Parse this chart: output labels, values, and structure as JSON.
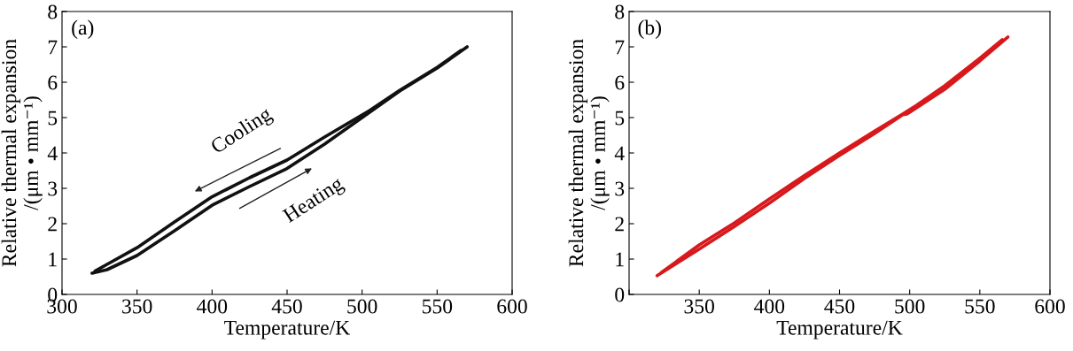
{
  "chart_data": [
    {
      "type": "line",
      "title": "(a)",
      "xlabel": "Temperature/K",
      "ylabel": "Relative thermal expansion\n/(μm • mm⁻¹)",
      "xlim": [
        300,
        600
      ],
      "xticks": [
        300,
        350,
        400,
        450,
        500,
        550,
        600
      ],
      "ylim": [
        0,
        8
      ],
      "yticks": [
        0,
        1,
        2,
        3,
        4,
        5,
        6,
        7,
        8
      ],
      "annotations": [
        "Cooling",
        "Heating"
      ],
      "grid": false,
      "legend": false,
      "series": [
        {
          "color": "#111111",
          "x": [
            320,
            330,
            350,
            375,
            400,
            425,
            450,
            475,
            500,
            525,
            550,
            570
          ],
          "values": [
            0.6,
            0.7,
            1.1,
            1.8,
            2.52,
            3.05,
            3.56,
            4.25,
            5.0,
            5.75,
            6.4,
            7.0
          ]
        },
        {
          "color": "#111111",
          "x": [
            566,
            550,
            525,
            505,
            475,
            450,
            425,
            400,
            375,
            350,
            330,
            322
          ],
          "values": [
            6.9,
            6.42,
            5.77,
            5.2,
            4.45,
            3.8,
            3.3,
            2.76,
            2.05,
            1.32,
            0.85,
            0.66
          ]
        }
      ]
    },
    {
      "type": "line",
      "title": "(b)",
      "xlabel": "Temperature/K",
      "ylabel": "Relative thermal expansion\n/(μm • mm⁻¹)",
      "xlim": [
        300,
        600
      ],
      "xticks": [
        {
          "value": 300,
          "label": null
        },
        350,
        400,
        450,
        500,
        550,
        600
      ],
      "ylim": [
        0,
        8
      ],
      "yticks": [
        0,
        1,
        2,
        3,
        4,
        5,
        6,
        7,
        8
      ],
      "grid": false,
      "legend": false,
      "series": [
        {
          "color": "#d7191c",
          "x": [
            320,
            350,
            375,
            400,
            425,
            450,
            475,
            495,
            498,
            500,
            525,
            550,
            570
          ],
          "values": [
            0.53,
            1.28,
            1.92,
            2.58,
            3.28,
            3.93,
            4.55,
            5.08,
            5.1,
            5.15,
            5.8,
            6.6,
            7.28
          ]
        },
        {
          "color": "#d7191c",
          "x": [
            566,
            550,
            525,
            505,
            497,
            495,
            475,
            450,
            425,
            400,
            375,
            350,
            323
          ],
          "values": [
            7.2,
            6.68,
            5.9,
            5.35,
            5.15,
            5.1,
            4.62,
            4.0,
            3.36,
            2.7,
            2.02,
            1.4,
            0.62
          ]
        }
      ]
    }
  ]
}
